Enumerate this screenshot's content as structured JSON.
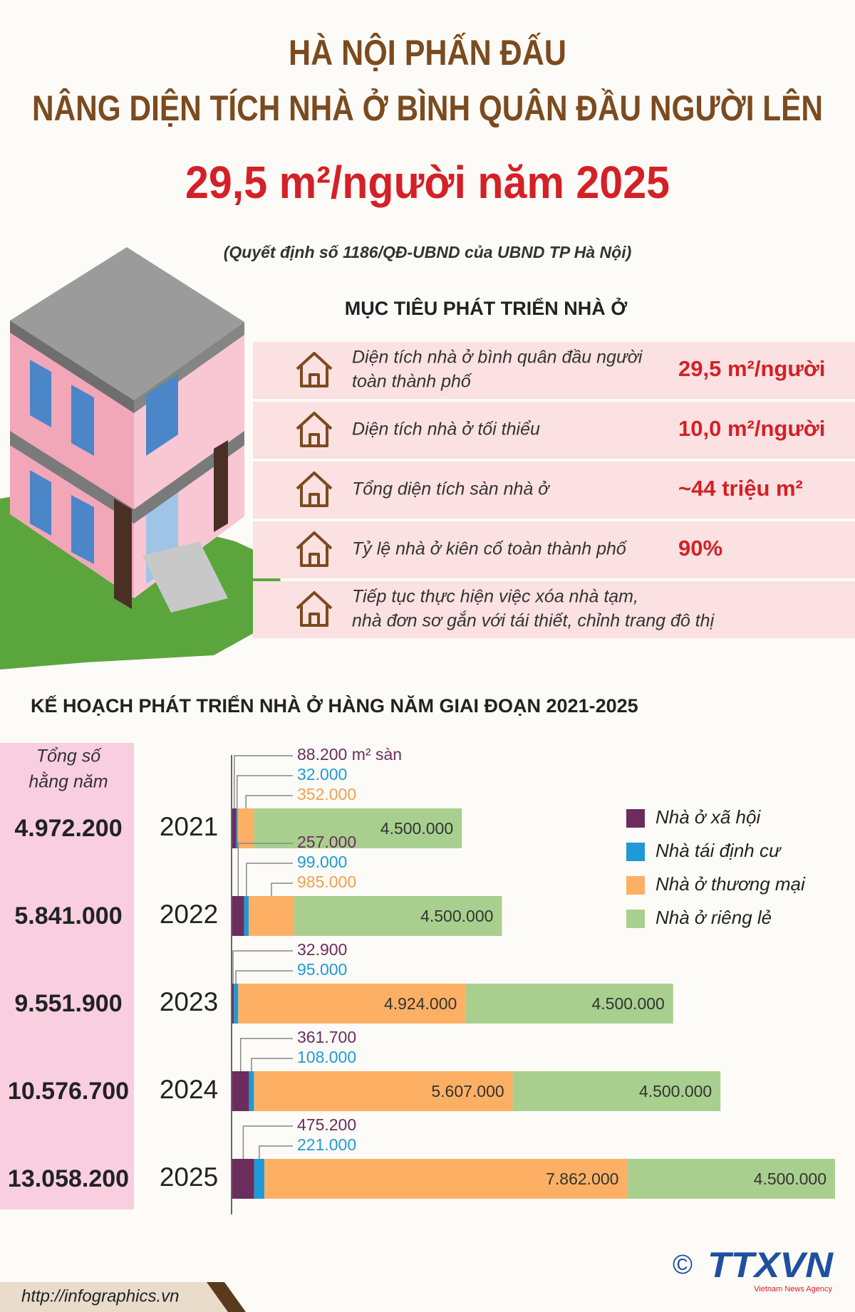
{
  "header": {
    "title_lines": [
      "HÀ NỘI PHẤN ĐẤU",
      "NÂNG DIỆN TÍCH NHÀ Ở BÌNH QUÂN ĐẦU NGƯỜI LÊN"
    ],
    "highlight": "29,5 m²/người năm 2025",
    "source": "(Quyết định số 1186/QĐ-UBND của UBND TP Hà Nội)"
  },
  "targets": {
    "title": "MỤC TIÊU PHÁT TRIỂN NHÀ Ở",
    "rows": [
      {
        "label": [
          "Diện tích nhà ở bình quân đầu người",
          "toàn thành phố"
        ],
        "value": "29,5 m²/người"
      },
      {
        "label": [
          "Diện tích nhà ở tối thiểu"
        ],
        "value": "10,0 m²/người"
      },
      {
        "label": [
          "Tổng diện tích sàn nhà ở"
        ],
        "value": "~44 triệu m²"
      },
      {
        "label": [
          "Tỷ lệ nhà ở kiên cố toàn thành phố"
        ],
        "value": "90%"
      },
      {
        "label": [
          "Tiếp tục thực hiện việc xóa nhà tạm,",
          "nhà đơn sơ gắn với tái thiết, chỉnh trang đô thị"
        ]
      }
    ]
  },
  "chart_data": {
    "type": "bar",
    "orientation": "horizontal",
    "stacked": true,
    "title": "KẾ HOẠCH PHÁT TRIỂN NHÀ Ở HÀNG NĂM GIAI ĐOẠN 2021-2025",
    "categories": [
      "2021",
      "2022",
      "2023",
      "2024",
      "2025"
    ],
    "series": [
      {
        "name": "Nhà ở xã hội",
        "color": "#6b2d5c",
        "values": [
          88200,
          257000,
          32900,
          361700,
          475200
        ],
        "value_labels": [
          "88.200 m² sàn",
          "257.000",
          "32.900",
          "361.700",
          "475.200"
        ]
      },
      {
        "name": "Nhà tái định cư",
        "color": "#1e9ad6",
        "values": [
          32000,
          99000,
          95000,
          108000,
          221000
        ],
        "value_labels": [
          "32.000",
          "99.000",
          "95.000",
          "108.000",
          "221.000"
        ]
      },
      {
        "name": "Nhà ở thương mại",
        "color": "#fdb064",
        "values": [
          352000,
          985000,
          4924000,
          5607000,
          7862000
        ],
        "value_labels": [
          "352.000",
          "985.000",
          "4.924.000",
          "5.607.000",
          "7.862.000"
        ]
      },
      {
        "name": "Nhà ở riêng lẻ",
        "color": "#a8cf8e",
        "values": [
          4500000,
          4500000,
          4500000,
          4500000,
          4500000
        ],
        "value_labels": [
          "4.500.000",
          "4.500.000",
          "4.500.000",
          "4.500.000",
          "4.500.000"
        ]
      }
    ],
    "totals": {
      "title": [
        "Tổng số",
        "hằng năm"
      ],
      "values": [
        4972200,
        5841000,
        9551900,
        10576700,
        13058200
      ],
      "value_labels": [
        "4.972.200",
        "5.841.000",
        "9.551.900",
        "10.576.700",
        "13.058.200"
      ]
    },
    "legend": "upper right"
  },
  "footer": {
    "url": "http://infographics.vn",
    "copyright": "©",
    "logo": "TTXVN",
    "agency": "Vietnam News Agency"
  }
}
